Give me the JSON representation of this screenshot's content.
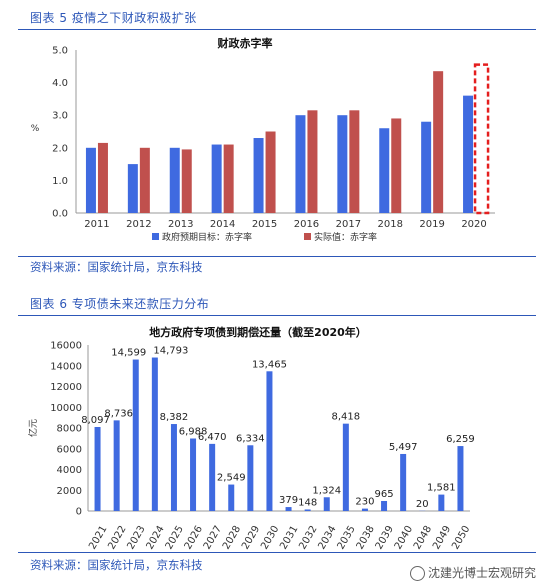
{
  "fig5": {
    "title": "图表 5 疫情之下财政积极扩张",
    "source": "资料来源：国家统计局，京东科技"
  },
  "fig6": {
    "title": "图表 6 专项债未来还款压力分布",
    "source": "资料来源：国家统计局，京东科技"
  },
  "watermark": "沈建光博士宏观研究",
  "colors": {
    "blue": "#3f6ae0",
    "red": "#c0504d",
    "highlight": "#e41e1e",
    "title_blue": "#2d57b8"
  },
  "chart_data": [
    {
      "type": "bar",
      "title": "财政赤字率",
      "ylabel": "%",
      "ylim": [
        0,
        5
      ],
      "yticks": [
        "0.0",
        "1.0",
        "2.0",
        "3.0",
        "4.0",
        "5.0"
      ],
      "categories": [
        "2011",
        "2012",
        "2013",
        "2014",
        "2015",
        "2016",
        "2017",
        "2018",
        "2019",
        "2020"
      ],
      "series": [
        {
          "name": "政府预期目标：赤字率",
          "values": [
            2.0,
            1.5,
            2.0,
            2.1,
            2.3,
            3.0,
            3.0,
            2.6,
            2.8,
            3.6
          ]
        },
        {
          "name": "实际值：赤字率",
          "values": [
            2.15,
            2.0,
            1.95,
            2.1,
            2.5,
            3.15,
            3.15,
            2.9,
            4.35,
            null
          ]
        }
      ],
      "highlight_category": "2020",
      "grid": false,
      "legend": "bottom"
    },
    {
      "type": "bar",
      "title": "地方政府专项债到期偿还量（截至2020年）",
      "ylabel": "亿元",
      "ylim": [
        0,
        16000
      ],
      "yticks": [
        "0",
        "2000",
        "4000",
        "6000",
        "8000",
        "10000",
        "12000",
        "14000",
        "16000"
      ],
      "categories": [
        "2021",
        "2022",
        "2023",
        "2024",
        "2025",
        "2026",
        "2027",
        "2028",
        "2029",
        "2030",
        "2031",
        "2032",
        "2034",
        "2035",
        "2038",
        "2039",
        "2040",
        "2048",
        "2049",
        "2050"
      ],
      "values": [
        8097,
        8736,
        14599,
        14793,
        8382,
        6988,
        6470,
        2549,
        6334,
        13465,
        379,
        148,
        1324,
        8418,
        230,
        965,
        5497,
        20,
        1581,
        6259
      ],
      "labels": [
        "8,097",
        "8,736",
        "14,599",
        "14,793",
        "8,382",
        "6,988",
        "6,470",
        "2,549",
        "6,334",
        "13,465",
        "379",
        "148",
        "1,324",
        "8,418",
        "230",
        "965",
        "5,497",
        "20",
        "1,581",
        "6,259"
      ],
      "grid": false
    }
  ]
}
